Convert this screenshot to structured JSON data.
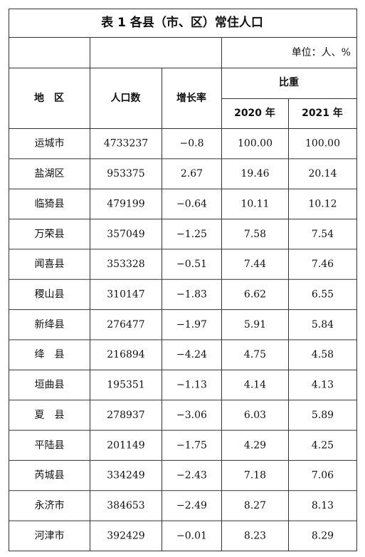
{
  "title": "表 1 各县（市、区）常住人口",
  "unit": "单位：人、%",
  "header": {
    "region": "地　区",
    "population": "人口数",
    "growth": "增长率",
    "share": "比重",
    "years": [
      "2020 年",
      "2021 年"
    ]
  },
  "rows": [
    [
      "运城市",
      "4733237",
      "−0.8",
      "100.00",
      "100.00"
    ],
    [
      "盐湖区",
      "953375",
      "2.67",
      "19.46",
      "20.14"
    ],
    [
      "临猗县",
      "479199",
      "−0.64",
      "10.11",
      "10.12"
    ],
    [
      "万荣县",
      "357049",
      "−1.25",
      "7.58",
      "7.54"
    ],
    [
      "闻喜县",
      "353328",
      "−0.51",
      "7.44",
      "7.46"
    ],
    [
      "稷山县",
      "310147",
      "−1.83",
      "6.62",
      "6.55"
    ],
    [
      "新绛县",
      "276477",
      "−1.97",
      "5.91",
      "5.84"
    ],
    [
      "绛　县",
      "216894",
      "−4.24",
      "4.75",
      "4.58"
    ],
    [
      "垣曲县",
      "195351",
      "−1.13",
      "4.14",
      "4.13"
    ],
    [
      "夏　县",
      "278937",
      "−3.06",
      "6.03",
      "5.89"
    ],
    [
      "平陆县",
      "201149",
      "−1.75",
      "4.29",
      "4.25"
    ],
    [
      "芮城县",
      "334249",
      "−2.43",
      "7.18",
      "7.06"
    ],
    [
      "永济市",
      "384653",
      "−2.49",
      "8.27",
      "8.13"
    ],
    [
      "河津市",
      "392429",
      "−0.01",
      "8.23",
      "8.29"
    ]
  ]
}
